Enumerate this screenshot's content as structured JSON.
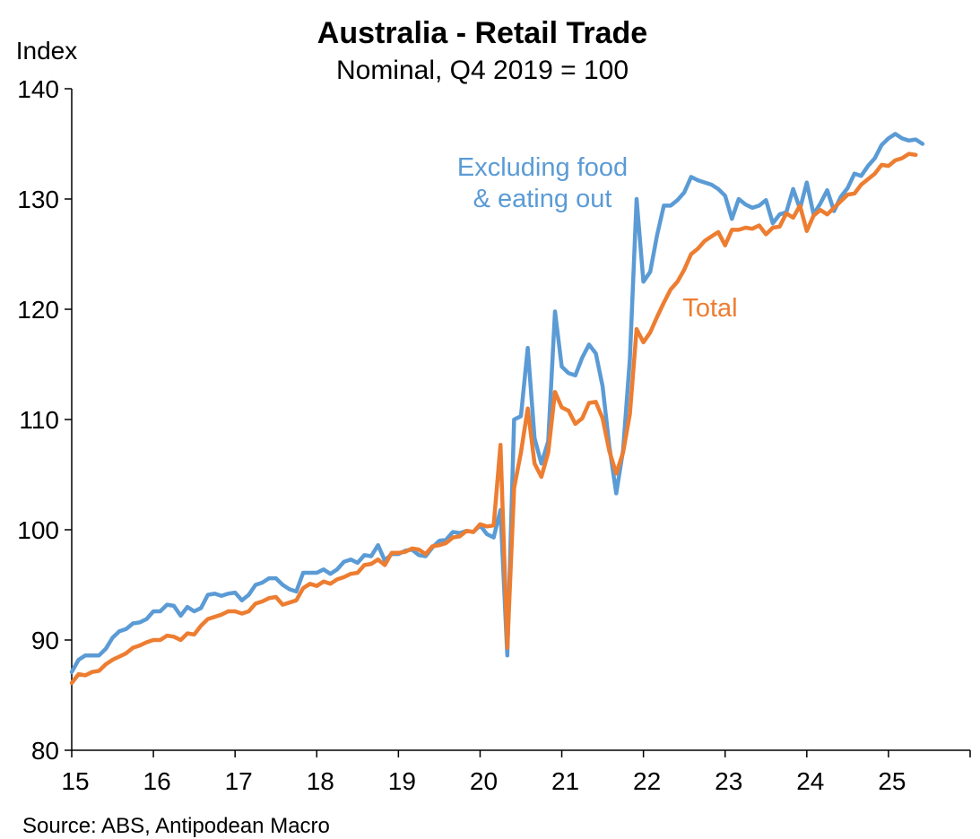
{
  "chart_data": {
    "type": "line",
    "title": "Australia - Retail Trade",
    "subtitle": "Nominal, Q4 2019 = 100",
    "ylabel": "Index",
    "xlabel": "",
    "ylim": [
      80,
      140
    ],
    "yticks": [
      "80",
      "90",
      "100",
      "110",
      "120",
      "130",
      "140"
    ],
    "xlim": [
      2015,
      2026
    ],
    "xticks": [
      "15",
      "16",
      "17",
      "18",
      "19",
      "20",
      "21",
      "22",
      "23",
      "24",
      "25"
    ],
    "grid": false,
    "legend": "none (direct labels)",
    "source": "Source: ABS, Antipodean Macro",
    "series": [
      {
        "name": "Excluding food\n& eating out",
        "label_lines": [
          "Excluding food",
          "& eating out"
        ],
        "color": "#5B9BD5",
        "start": "2015-01",
        "frequency": "monthly",
        "values": [
          87.1,
          88.2,
          88.6,
          88.6,
          88.6,
          89.2,
          90.2,
          90.8,
          91.0,
          91.5,
          91.6,
          91.9,
          92.6,
          92.6,
          93.2,
          93.1,
          92.2,
          93.0,
          92.6,
          92.9,
          94.1,
          94.2,
          94.0,
          94.2,
          94.3,
          93.6,
          94.1,
          95.0,
          95.2,
          95.6,
          95.6,
          95.0,
          94.6,
          94.4,
          96.1,
          96.1,
          96.1,
          96.4,
          96.0,
          96.4,
          97.1,
          97.3,
          97.0,
          97.7,
          97.6,
          98.6,
          97.2,
          97.8,
          97.8,
          98.1,
          98.2,
          97.7,
          97.6,
          98.4,
          99.0,
          99.1,
          99.8,
          99.7,
          99.9,
          99.8,
          100.4,
          99.6,
          99.3,
          101.8,
          88.6,
          110.0,
          110.3,
          116.5,
          108.3,
          106.0,
          108.0,
          119.8,
          114.8,
          114.2,
          114.0,
          115.6,
          116.8,
          116.0,
          113.0,
          107.5,
          103.3,
          107.2,
          115.5,
          130.0,
          122.5,
          123.4,
          126.7,
          129.4,
          129.4,
          129.9,
          130.6,
          132.0,
          131.7,
          131.5,
          131.3,
          130.9,
          130.3,
          128.2,
          130.0,
          129.5,
          129.2,
          129.4,
          129.9,
          127.8,
          128.6,
          128.8,
          130.9,
          129.1,
          131.5,
          128.6,
          129.6,
          130.8,
          128.9,
          130.2,
          131.0,
          132.3,
          132.1,
          133.0,
          133.7,
          134.9,
          135.5,
          135.9,
          135.5,
          135.3,
          135.4,
          135.0
        ]
      },
      {
        "name": "Total",
        "label_lines": [
          "Total"
        ],
        "color": "#ED7D31",
        "start": "2015-01",
        "frequency": "monthly",
        "values": [
          86.1,
          86.9,
          86.8,
          87.1,
          87.2,
          87.8,
          88.2,
          88.5,
          88.8,
          89.3,
          89.5,
          89.8,
          90.0,
          90.0,
          90.4,
          90.3,
          90.0,
          90.6,
          90.5,
          91.3,
          91.9,
          92.1,
          92.3,
          92.6,
          92.6,
          92.4,
          92.6,
          93.3,
          93.5,
          93.8,
          93.9,
          93.2,
          93.4,
          93.6,
          94.7,
          95.1,
          94.9,
          95.3,
          95.1,
          95.5,
          95.7,
          96.0,
          96.1,
          96.8,
          96.9,
          97.3,
          96.8,
          97.9,
          97.9,
          98.0,
          98.3,
          98.2,
          97.8,
          98.5,
          98.6,
          98.8,
          99.3,
          99.4,
          99.9,
          99.8,
          100.5,
          100.3,
          100.4,
          107.7,
          89.3,
          103.8,
          107.0,
          111.0,
          106.0,
          104.8,
          107.0,
          112.5,
          111.1,
          110.8,
          109.6,
          110.1,
          111.5,
          111.6,
          110.1,
          107.1,
          105.1,
          107.0,
          110.5,
          118.2,
          117.0,
          117.9,
          119.3,
          120.6,
          121.8,
          122.5,
          123.6,
          125.0,
          125.5,
          126.2,
          126.6,
          127.0,
          125.8,
          127.2,
          127.2,
          127.4,
          127.3,
          127.6,
          126.8,
          127.4,
          127.5,
          128.7,
          128.3,
          129.4,
          127.1,
          128.5,
          129.0,
          128.6,
          129.2,
          129.8,
          130.4,
          130.5,
          131.3,
          131.8,
          132.3,
          133.1,
          133.0,
          133.5,
          133.7,
          134.1,
          134.0
        ]
      }
    ]
  }
}
